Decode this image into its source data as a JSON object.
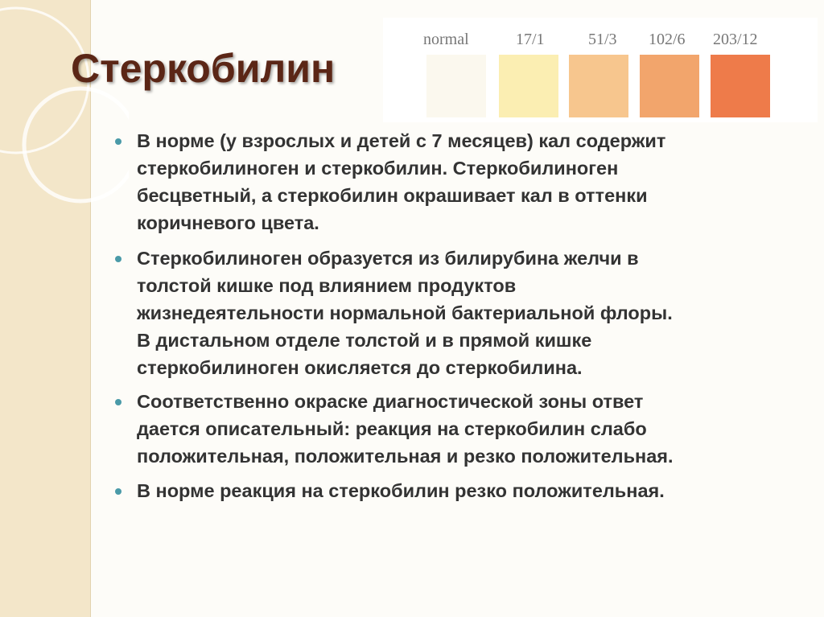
{
  "title": "Стеркобилин",
  "scale": {
    "labels": [
      "normal",
      "17/1",
      "51/3",
      "102/6",
      "203/12"
    ]
  },
  "bullets": [
    {
      "lines": [
        "В норме (у взрослых и детей с 7 месяцев) кал содержит",
        "стеркобилиноген и стеркобилин. Стеркобилиноген",
        "бесцветный, а стеркобилин окрашивает кал в оттенки",
        "коричневого цвета."
      ]
    },
    {
      "lines": [
        "Стеркобилиноген образуется  из билирубина желчи в",
        "толстой кишке под влиянием продуктов",
        "жизнедеятельности нормальной бактериальной флоры.",
        "В дистальном отделе толстой и в прямой кишке",
        "стеркобилиноген окисляется до стеркобилина."
      ]
    },
    {
      "lines": [
        "Соответственно окраске диагностической зоны ответ",
        "дается описательный: реакция на стеркобилин слабо",
        "положительная, положительная и резко положительная."
      ]
    },
    {
      "lines": [
        "В норме реакция на стеркобилин резко положительная."
      ]
    }
  ]
}
